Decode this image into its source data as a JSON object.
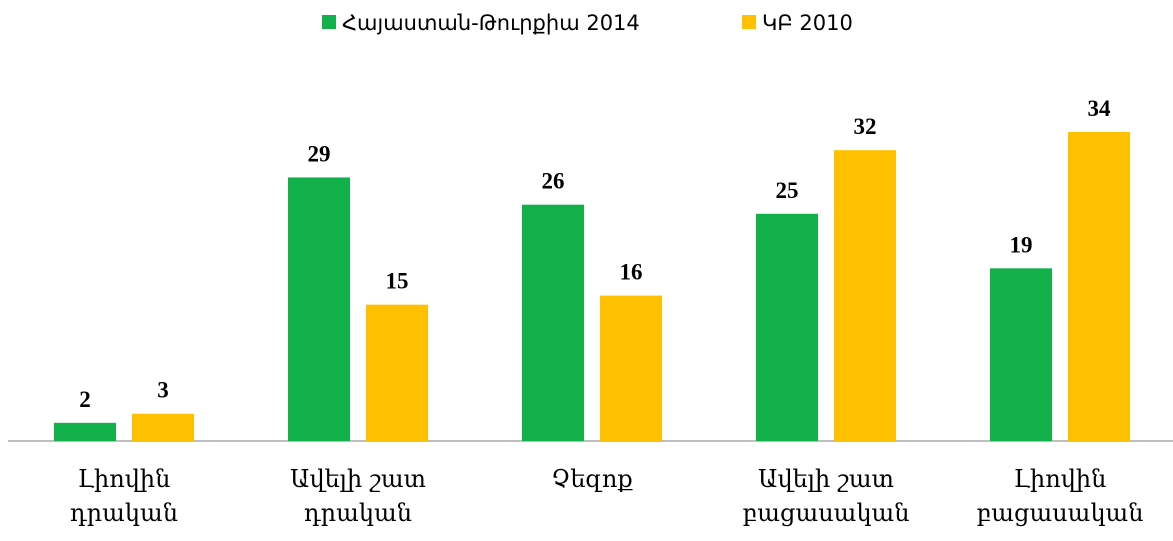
{
  "chart_data": {
    "type": "bar",
    "categories": [
      "Լիովին դրական",
      "Ավելի շատ դրական",
      "Չեզոք",
      "Ավելի շատ բացասական",
      "Լիովին բացասական"
    ],
    "series": [
      {
        "name": "Հայաստան-Թուրքիա 2014",
        "color": "#12b04a",
        "values": [
          2,
          29,
          26,
          25,
          19
        ]
      },
      {
        "name": "ԿԲ 2010",
        "color": "#ffc000",
        "values": [
          3,
          15,
          16,
          32,
          34
        ]
      }
    ],
    "legend": "top"
  }
}
